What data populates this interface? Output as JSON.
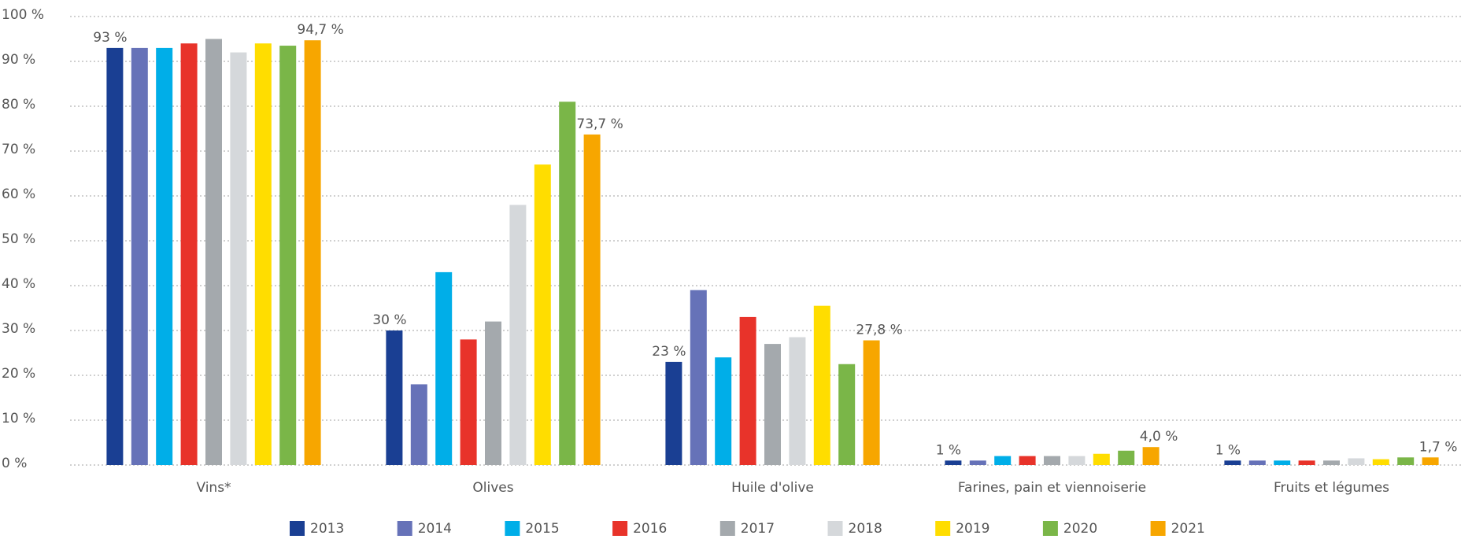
{
  "chart_data": {
    "type": "bar",
    "categories": [
      "Vins*",
      "Olives",
      "Huile d'olive",
      "Farines, pain et viennoiserie",
      "Fruits et légumes"
    ],
    "series": [
      {
        "name": "2013",
        "color": "#1a3f93",
        "values": [
          93,
          30,
          23,
          1,
          1
        ],
        "value_labels": [
          "93 %",
          "30 %",
          "23 %",
          "1 %",
          "1 %"
        ]
      },
      {
        "name": "2014",
        "color": "#6672b8",
        "values": [
          93,
          18,
          39,
          1,
          1
        ]
      },
      {
        "name": "2015",
        "color": "#00aee8",
        "values": [
          93,
          43,
          24,
          2,
          1
        ]
      },
      {
        "name": "2016",
        "color": "#e8332a",
        "values": [
          94,
          28,
          33,
          2,
          1
        ]
      },
      {
        "name": "2017",
        "color": "#a4a9ad",
        "values": [
          95,
          32,
          27,
          2,
          1
        ]
      },
      {
        "name": "2018",
        "color": "#d5d8db",
        "values": [
          92,
          58,
          28.5,
          2,
          1.5
        ]
      },
      {
        "name": "2019",
        "color": "#ffdd00",
        "values": [
          94,
          67,
          35.5,
          2.5,
          1.3
        ]
      },
      {
        "name": "2020",
        "color": "#7ab648",
        "values": [
          93.5,
          81,
          22.5,
          3.2,
          1.7
        ]
      },
      {
        "name": "2021",
        "color": "#f7a600",
        "values": [
          94.7,
          73.7,
          27.8,
          4.0,
          1.7
        ],
        "value_labels": [
          "94,7 %",
          "73,7 %",
          "27,8 %",
          "4,0 %",
          "1,7 %"
        ]
      }
    ],
    "ylim": [
      0,
      100
    ],
    "yticks": [
      {
        "value": 0,
        "label": "0 %"
      },
      {
        "value": 10,
        "label": "10 %"
      },
      {
        "value": 20,
        "label": "20 %"
      },
      {
        "value": 30,
        "label": "30 %"
      },
      {
        "value": 40,
        "label": "40 %"
      },
      {
        "value": 50,
        "label": "50 %"
      },
      {
        "value": 60,
        "label": "60 %"
      },
      {
        "value": 70,
        "label": "70 %"
      },
      {
        "value": 80,
        "label": "80 %"
      },
      {
        "value": 90,
        "label": "90 %"
      },
      {
        "value": 100,
        "label": "100 %"
      }
    ],
    "grid": true,
    "legend": "bottom"
  }
}
